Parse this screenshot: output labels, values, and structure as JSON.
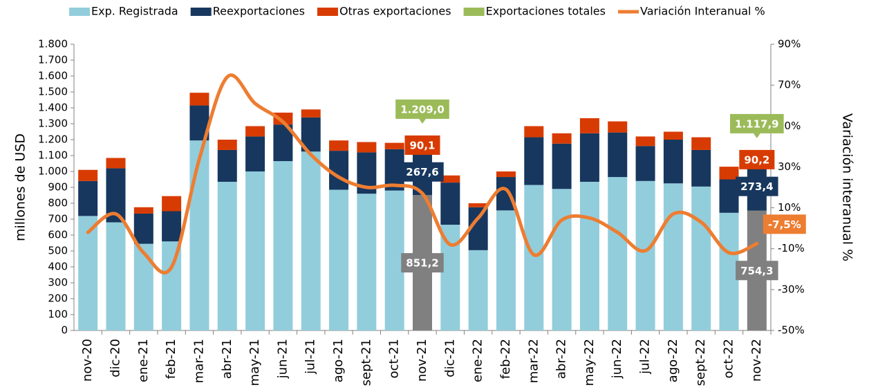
{
  "chart_data": {
    "type": "stacked-bar-line",
    "ylabel": "millones de  USD",
    "y2label": "Variación  interanual %",
    "categories": [
      "nov-20",
      "dic-20",
      "ene-21",
      "feb-21",
      "mar-21",
      "abr-21",
      "may-21",
      "jun-21",
      "jul-21",
      "ago-21",
      "sept-21",
      "oct-21",
      "nov-21",
      "dic-21",
      "ene-22",
      "feb-22",
      "mar-22",
      "abr-22",
      "may-22",
      "jun-22",
      "jul-22",
      "ago-22",
      "sept-22",
      "oct-22",
      "nov-22"
    ],
    "series": [
      {
        "name": "Exp. Registrada",
        "color": "#92cddc",
        "point_colors": [
          "#92cddc",
          "#92cddc",
          "#92cddc",
          "#92cddc",
          "#92cddc",
          "#92cddc",
          "#92cddc",
          "#92cddc",
          "#92cddc",
          "#92cddc",
          "#92cddc",
          "#92cddc",
          "#808080",
          "#92cddc",
          "#92cddc",
          "#92cddc",
          "#92cddc",
          "#92cddc",
          "#92cddc",
          "#92cddc",
          "#92cddc",
          "#92cddc",
          "#92cddc",
          "#92cddc",
          "#808080"
        ],
        "values": [
          720,
          680,
          545,
          560,
          1195,
          935,
          1000,
          1065,
          1125,
          885,
          860,
          880,
          851.2,
          665,
          505,
          755,
          915,
          890,
          935,
          965,
          940,
          925,
          905,
          740,
          754.3
        ],
        "value_labels": [
          null,
          null,
          null,
          null,
          null,
          null,
          null,
          null,
          null,
          null,
          null,
          null,
          "851,2",
          null,
          null,
          null,
          null,
          null,
          null,
          null,
          null,
          null,
          null,
          null,
          "754,3"
        ]
      },
      {
        "name": "Reexportaciones",
        "color": "#17375e",
        "values": [
          220,
          340,
          190,
          190,
          220,
          200,
          220,
          230,
          215,
          245,
          260,
          260,
          267.6,
          265,
          270,
          210,
          300,
          285,
          305,
          280,
          220,
          275,
          230,
          210,
          273.4
        ],
        "value_labels": [
          null,
          null,
          null,
          null,
          null,
          null,
          null,
          null,
          null,
          null,
          null,
          null,
          "267,6",
          null,
          null,
          null,
          null,
          null,
          null,
          null,
          null,
          null,
          null,
          null,
          "273,4"
        ]
      },
      {
        "name": "Otras exportaciones",
        "color": "#d83b01",
        "values": [
          70,
          65,
          40,
          95,
          80,
          65,
          65,
          75,
          50,
          65,
          65,
          40,
          90.1,
          45,
          25,
          35,
          70,
          65,
          95,
          70,
          60,
          50,
          80,
          80,
          90.2
        ],
        "value_labels": [
          null,
          null,
          null,
          null,
          null,
          null,
          null,
          null,
          null,
          null,
          null,
          null,
          "90,1",
          null,
          null,
          null,
          null,
          null,
          null,
          null,
          null,
          null,
          null,
          null,
          "90,2"
        ]
      },
      {
        "name": "Exportaciones  totales",
        "color": "#9bbb59",
        "kind": "label-only",
        "values": [
          null,
          null,
          null,
          null,
          null,
          null,
          null,
          null,
          null,
          null,
          null,
          null,
          1209.0,
          null,
          null,
          null,
          null,
          null,
          null,
          null,
          null,
          null,
          null,
          null,
          1117.9
        ],
        "value_labels": [
          null,
          null,
          null,
          null,
          null,
          null,
          null,
          null,
          null,
          null,
          null,
          null,
          "1.209,0",
          null,
          null,
          null,
          null,
          null,
          null,
          null,
          null,
          null,
          null,
          null,
          "1.117,9"
        ]
      },
      {
        "name": "Variación Interanual %",
        "color": "#ed7d31",
        "kind": "line",
        "axis": "y2",
        "values": [
          -2,
          7,
          -12,
          -19,
          34,
          74,
          61,
          52,
          36,
          25,
          20,
          21,
          17,
          -8,
          5,
          19,
          -13,
          4,
          5,
          -2,
          -11,
          7,
          3,
          -12,
          -7.5
        ],
        "value_labels": [
          null,
          null,
          null,
          null,
          null,
          null,
          null,
          null,
          null,
          null,
          null,
          null,
          null,
          null,
          null,
          null,
          null,
          null,
          null,
          null,
          null,
          null,
          null,
          null,
          "-7,5%"
        ]
      }
    ],
    "ylim": [
      0,
      1800
    ],
    "yticks": [
      0,
      100,
      200,
      300,
      400,
      500,
      600,
      700,
      800,
      900,
      {
        "value": 1000,
        "label": "1.000"
      },
      {
        "value": 1100,
        "label": "1.100"
      },
      {
        "value": 1200,
        "label": "1.200"
      },
      {
        "value": 1300,
        "label": "1.300"
      },
      {
        "value": 1400,
        "label": "1.400"
      },
      {
        "value": 1500,
        "label": "1.500"
      },
      {
        "value": 1600,
        "label": "1.600"
      },
      {
        "value": 1700,
        "label": "1.700"
      },
      {
        "value": 1800,
        "label": "1.800"
      }
    ],
    "y2lim": [
      -50,
      90
    ],
    "y2ticks": [
      {
        "value": -50,
        "label": "-50%"
      },
      {
        "value": -30,
        "label": "-30%"
      },
      {
        "value": -10,
        "label": "-10%"
      },
      {
        "value": 10,
        "label": "10%"
      },
      {
        "value": 30,
        "label": "30%"
      },
      {
        "value": 50,
        "label": "50%"
      },
      {
        "value": 70,
        "label": "70%"
      },
      {
        "value": 90,
        "label": "90%"
      }
    ],
    "legend": "top",
    "grid": false
  }
}
